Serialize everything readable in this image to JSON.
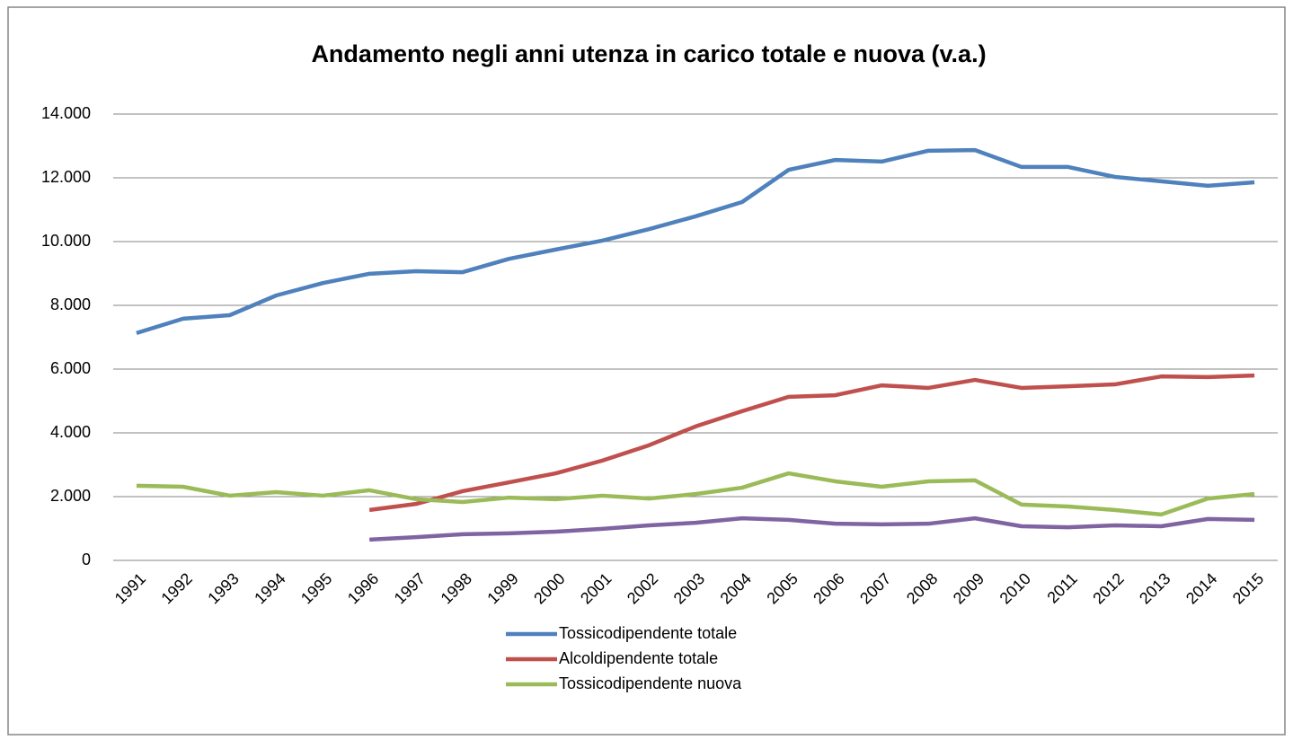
{
  "chart_data": {
    "type": "line",
    "title": "Andamento negli anni utenza in carico totale e nuova (v.a.)",
    "categories": [
      "1991",
      "1992",
      "1993",
      "1994",
      "1995",
      "1996",
      "1997",
      "1998",
      "1999",
      "2000",
      "2001",
      "2002",
      "2003",
      "2004",
      "2005",
      "2006",
      "2007",
      "2008",
      "2009",
      "2010",
      "2011",
      "2012",
      "2013",
      "2014",
      "2015"
    ],
    "series": [
      {
        "name": "Tossicodipendente totale",
        "color": "#4f81bd",
        "values": [
          7130,
          7580,
          7690,
          8310,
          8700,
          8990,
          9070,
          9040,
          9460,
          9750,
          10030,
          10390,
          10790,
          11240,
          12250,
          12560,
          12510,
          12850,
          12870,
          12340,
          12340,
          12030,
          11890,
          11750,
          11860
        ]
      },
      {
        "name": "Alcoldipendente totale",
        "color": "#c0504d",
        "values": [
          null,
          null,
          null,
          null,
          null,
          1580,
          1770,
          2170,
          2450,
          2730,
          3130,
          3610,
          4200,
          4680,
          5130,
          5180,
          5490,
          5410,
          5660,
          5410,
          5460,
          5520,
          5770,
          5750,
          5800
        ]
      },
      {
        "name": "Tossicodipendente nuova",
        "color": "#9bbb59",
        "values": [
          2340,
          2310,
          2030,
          2140,
          2030,
          2200,
          1920,
          1830,
          1970,
          1920,
          2030,
          1940,
          2080,
          2280,
          2730,
          2480,
          2310,
          2480,
          2510,
          1750,
          1690,
          1580,
          1440,
          1940,
          2080
        ]
      },
      {
        "color": "#8064a2",
        "values": [
          null,
          null,
          null,
          null,
          null,
          650,
          730,
          820,
          850,
          900,
          990,
          1100,
          1180,
          1320,
          1270,
          1150,
          1130,
          1150,
          1320,
          1070,
          1040,
          1100,
          1070,
          1300,
          1270
        ]
      }
    ],
    "ylim": [
      0,
      14000
    ],
    "yticks": [
      0,
      {
        "value": 2000,
        "label": "2.000"
      },
      {
        "value": 4000,
        "label": "4.000"
      },
      {
        "value": 6000,
        "label": "6.000"
      },
      {
        "value": 8000,
        "label": "8.000"
      },
      {
        "value": 10000,
        "label": "10.000"
      },
      {
        "value": 12000,
        "label": "12.000"
      },
      {
        "value": 14000,
        "label": "14.000"
      }
    ],
    "grid": true,
    "legend": "bottom"
  }
}
